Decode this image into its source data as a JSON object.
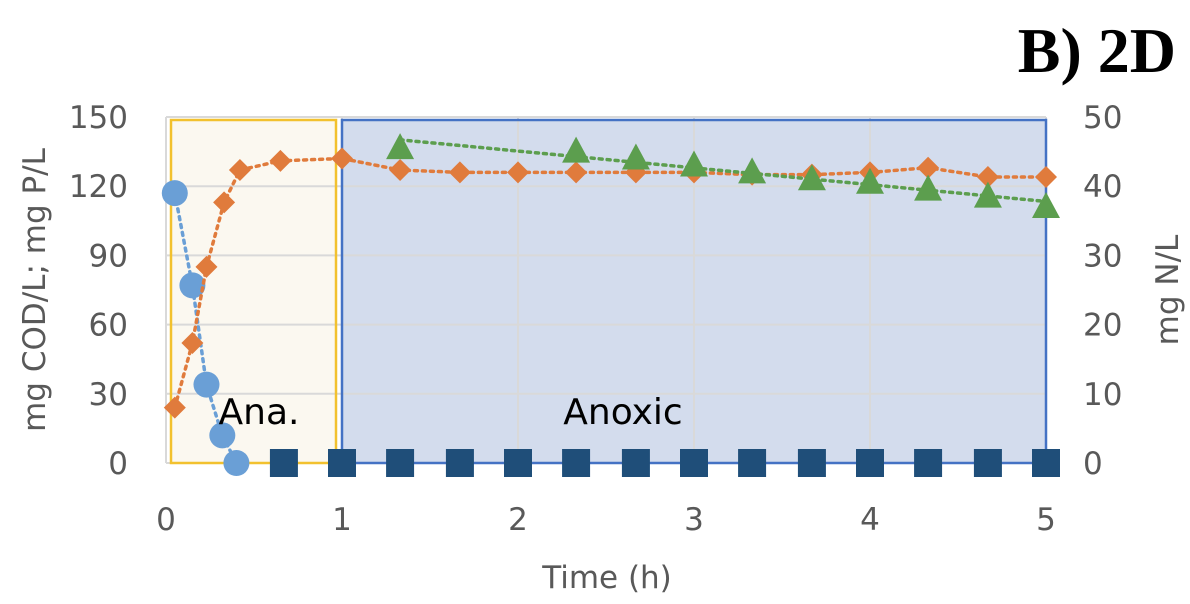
{
  "panel_label": "B) 2D",
  "chart_data": {
    "type": "scatter",
    "xlabel": "Time (h)",
    "ylabel_left": "mg COD/L; mg P/L",
    "ylabel_right": "mg N/L",
    "xlim": [
      0,
      5
    ],
    "ylim_left": [
      0,
      150
    ],
    "ylim_right": [
      0,
      50
    ],
    "x_ticks": [
      "0",
      "1",
      "2",
      "3",
      "4",
      "5"
    ],
    "y_left_ticks": [
      "0",
      "30",
      "60",
      "90",
      "120",
      "150"
    ],
    "y_right_ticks": [
      "0",
      "10",
      "20",
      "30",
      "40",
      "50"
    ],
    "grid": true,
    "regions": [
      {
        "label": "Ana.",
        "x_start": 0,
        "x_end": 1,
        "fill": "#fbf8f0",
        "stroke": "#f2c12e"
      },
      {
        "label": "Anoxic",
        "x_start": 1,
        "x_end": 5,
        "fill": "#d3dced",
        "stroke": "#4472c4"
      }
    ],
    "series": [
      {
        "marker": "circle",
        "color": "#6a9fd6",
        "axis": "left",
        "dotted_line": true,
        "points": [
          [
            0.05,
            117
          ],
          [
            0.15,
            77
          ],
          [
            0.23,
            34
          ],
          [
            0.32,
            12
          ],
          [
            0.4,
            0
          ]
        ]
      },
      {
        "marker": "diamond",
        "color": "#e07b3c",
        "axis": "left",
        "dotted_line": true,
        "points": [
          [
            0.05,
            24
          ],
          [
            0.15,
            52
          ],
          [
            0.23,
            85
          ],
          [
            0.33,
            113
          ],
          [
            0.42,
            127
          ],
          [
            0.65,
            131
          ],
          [
            1.0,
            132
          ],
          [
            1.33,
            127
          ],
          [
            1.67,
            126
          ],
          [
            2.0,
            126
          ],
          [
            2.33,
            126
          ],
          [
            2.67,
            126
          ],
          [
            3.0,
            126
          ],
          [
            3.33,
            125
          ],
          [
            3.67,
            125
          ],
          [
            4.0,
            126
          ],
          [
            4.33,
            128
          ],
          [
            4.67,
            124
          ],
          [
            5.0,
            124
          ]
        ]
      },
      {
        "marker": "triangle",
        "color": "#5c9e4e",
        "axis": "right",
        "dotted_line": true,
        "points": [
          [
            1.33,
            45.5
          ],
          [
            2.33,
            45
          ],
          [
            2.67,
            44
          ],
          [
            3.0,
            43
          ],
          [
            3.33,
            42
          ],
          [
            3.67,
            41
          ],
          [
            4.0,
            40.5
          ],
          [
            4.33,
            39.5
          ],
          [
            4.67,
            38.5
          ],
          [
            5.0,
            37
          ]
        ]
      },
      {
        "marker": "square",
        "color": "#1f4e79",
        "axis": "right",
        "dotted_line": false,
        "points": [
          [
            0.67,
            0
          ],
          [
            1.0,
            0
          ],
          [
            1.33,
            0
          ],
          [
            1.67,
            0
          ],
          [
            2.0,
            0
          ],
          [
            2.33,
            0
          ],
          [
            2.67,
            0
          ],
          [
            3.0,
            0
          ],
          [
            3.33,
            0
          ],
          [
            3.67,
            0
          ],
          [
            4.0,
            0
          ],
          [
            4.33,
            0
          ],
          [
            4.67,
            0
          ],
          [
            5.0,
            0
          ]
        ]
      }
    ]
  }
}
